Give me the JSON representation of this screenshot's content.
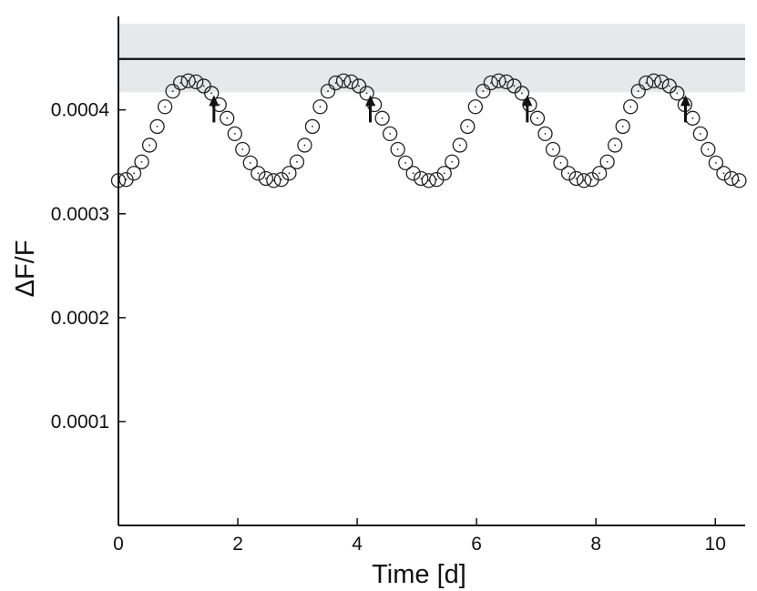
{
  "chart_data": {
    "type": "scatter",
    "title": "",
    "xlabel": "Time [d]",
    "ylabel": "ΔF/F",
    "xlim": [
      0,
      10.5
    ],
    "ylim": [
      0,
      0.00049
    ],
    "x_ticks": [
      0,
      2,
      4,
      6,
      8,
      10
    ],
    "x_tick_labels": [
      "0",
      "2",
      "4",
      "6",
      "8",
      "10"
    ],
    "y_ticks": [
      0.0001,
      0.0002,
      0.0003,
      0.0004
    ],
    "y_tick_labels": [
      "0.0001",
      "0.0002",
      "0.0003",
      "0.0004"
    ],
    "grid": false,
    "reference_line": {
      "y": 0.000449
    },
    "shaded_band": {
      "y_low": 0.000417,
      "y_high": 0.000483
    },
    "series": [
      {
        "marker": "open-circle",
        "x": [
          0.0,
          0.13,
          0.26,
          0.39,
          0.52,
          0.65,
          0.78,
          0.91,
          1.04,
          1.17,
          1.3,
          1.43,
          1.56,
          1.69,
          1.82,
          1.95,
          2.08,
          2.21,
          2.34,
          2.47,
          2.6,
          2.73,
          2.86,
          2.99,
          3.12,
          3.25,
          3.38,
          3.51,
          3.64,
          3.77,
          3.9,
          4.03,
          4.16,
          4.29,
          4.42,
          4.55,
          4.68,
          4.81,
          4.94,
          5.07,
          5.2,
          5.33,
          5.46,
          5.59,
          5.72,
          5.85,
          5.98,
          6.11,
          6.24,
          6.37,
          6.5,
          6.63,
          6.76,
          6.89,
          7.02,
          7.15,
          7.28,
          7.41,
          7.54,
          7.67,
          7.8,
          7.93,
          8.06,
          8.19,
          8.32,
          8.45,
          8.58,
          8.71,
          8.84,
          8.97,
          9.1,
          9.23,
          9.36,
          9.49,
          9.62,
          9.75,
          9.88,
          10.01,
          10.14,
          10.27,
          10.4
        ],
        "y": [
          0.000332,
          0.000333,
          0.000339,
          0.00035,
          0.000366,
          0.000384,
          0.000403,
          0.000418,
          0.000426,
          0.000428,
          0.000427,
          0.000423,
          0.000416,
          0.000405,
          0.000392,
          0.000377,
          0.000362,
          0.000349,
          0.000339,
          0.000334,
          0.000332,
          0.000333,
          0.000339,
          0.00035,
          0.000366,
          0.000384,
          0.000403,
          0.000418,
          0.000426,
          0.000428,
          0.000427,
          0.000423,
          0.000416,
          0.000405,
          0.000392,
          0.000377,
          0.000362,
          0.000349,
          0.000339,
          0.000334,
          0.000332,
          0.000333,
          0.000339,
          0.00035,
          0.000366,
          0.000384,
          0.000403,
          0.000418,
          0.000426,
          0.000428,
          0.000427,
          0.000423,
          0.000416,
          0.000405,
          0.000392,
          0.000377,
          0.000362,
          0.000349,
          0.000339,
          0.000334,
          0.000332,
          0.000333,
          0.000339,
          0.00035,
          0.000366,
          0.000384,
          0.000403,
          0.000418,
          0.000426,
          0.000428,
          0.000427,
          0.000423,
          0.000416,
          0.000405,
          0.000392,
          0.000377,
          0.000362,
          0.000349,
          0.000339,
          0.000334,
          0.000332
        ]
      }
    ],
    "arrows": [
      {
        "x": 1.6,
        "y": 0.000416
      },
      {
        "x": 4.22,
        "y": 0.000416
      },
      {
        "x": 6.85,
        "y": 0.000416
      },
      {
        "x": 9.5,
        "y": 0.000416
      }
    ]
  }
}
